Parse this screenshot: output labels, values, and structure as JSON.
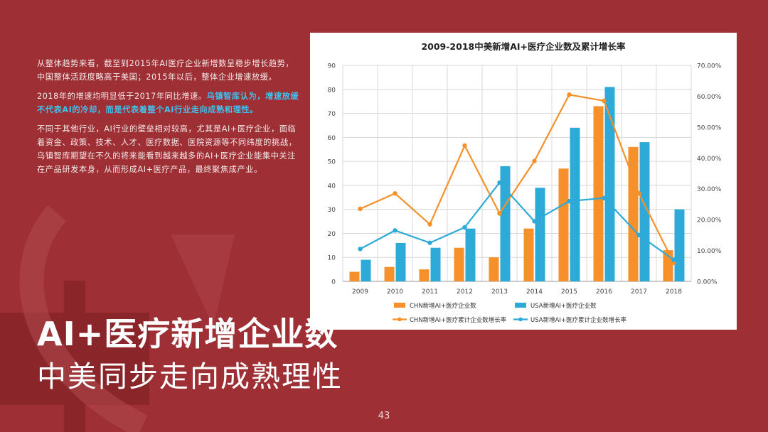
{
  "paragraphs": {
    "p1": "从整体趋势来看，截至到2015年AI医疗企业新增数呈稳步增长趋势，中国整体活跃度略高于美国；2015年以后，整体企业增速放缓。",
    "p2_plain": "2018年的增速均明显低于2017年同比增速。",
    "p2_highlight": "乌镇智库认为，增速放缓不代表AI的冷却，而是代表着整个AI行业走向成熟和理性。",
    "p3": "不同于其他行业，AI行业的壁垒相对较高，尤其是AI+医疗企业，面临着资金、政策、技术、人才、医疗数据、医院资源等不同纬度的挑战，乌镇智库期望在不久的将来能看到越来越多的AI+医疗企业能集中关注在产品研发本身，从而形成AI+医疗产品，最终聚焦成产业。"
  },
  "headline": {
    "main": "AI+医疗新增企业数",
    "sub": "中美同步走向成熟理性"
  },
  "page_number": "43",
  "colors": {
    "background": "#9e2f34",
    "chn": "#f5902a",
    "usa": "#2eaad8",
    "highlight_text": "#3fc1ee"
  },
  "chart_data": {
    "type": "bar",
    "title": "2009-2018中美新增AI+医疗企业数及累计增长率",
    "categories": [
      "2009",
      "2010",
      "2011",
      "2012",
      "2013",
      "2014",
      "2015",
      "2016",
      "2017",
      "2018"
    ],
    "series": [
      {
        "name": "CHN新增AI+医疗企业数",
        "type": "bar",
        "axis": "left",
        "color": "#f5902a",
        "values": [
          4,
          6,
          5,
          14,
          10,
          22,
          47,
          73,
          56,
          13
        ]
      },
      {
        "name": "USA新增AI+医疗企业数",
        "type": "bar",
        "axis": "left",
        "color": "#2eaad8",
        "values": [
          9,
          16,
          14,
          22,
          48,
          39,
          64,
          81,
          58,
          30
        ]
      },
      {
        "name": "CHN新增AI+医疗累计企业数增长率",
        "type": "line",
        "axis": "right",
        "color": "#f5902a",
        "values": [
          23.5,
          28.5,
          18.5,
          44,
          22,
          39,
          60.5,
          58.5,
          28.5,
          6
        ]
      },
      {
        "name": "USA新增AI+医疗累计企业数增长率",
        "type": "line",
        "axis": "right",
        "color": "#2eaad8",
        "values": [
          10.5,
          16.5,
          12.5,
          17.5,
          32,
          19.5,
          26,
          27,
          15,
          7
        ]
      }
    ],
    "y_left": {
      "min": 0,
      "max": 90,
      "step": 10,
      "ticks": [
        "0",
        "10",
        "20",
        "30",
        "40",
        "50",
        "60",
        "70",
        "80",
        "90"
      ]
    },
    "y_right": {
      "min": 0,
      "max": 70,
      "step": 10,
      "ticks": [
        "0.00%",
        "10.00%",
        "20.00%",
        "30.00%",
        "40.00%",
        "50.00%",
        "60.00%",
        "70.00%"
      ]
    },
    "grid": true,
    "legend_position": "bottom"
  }
}
